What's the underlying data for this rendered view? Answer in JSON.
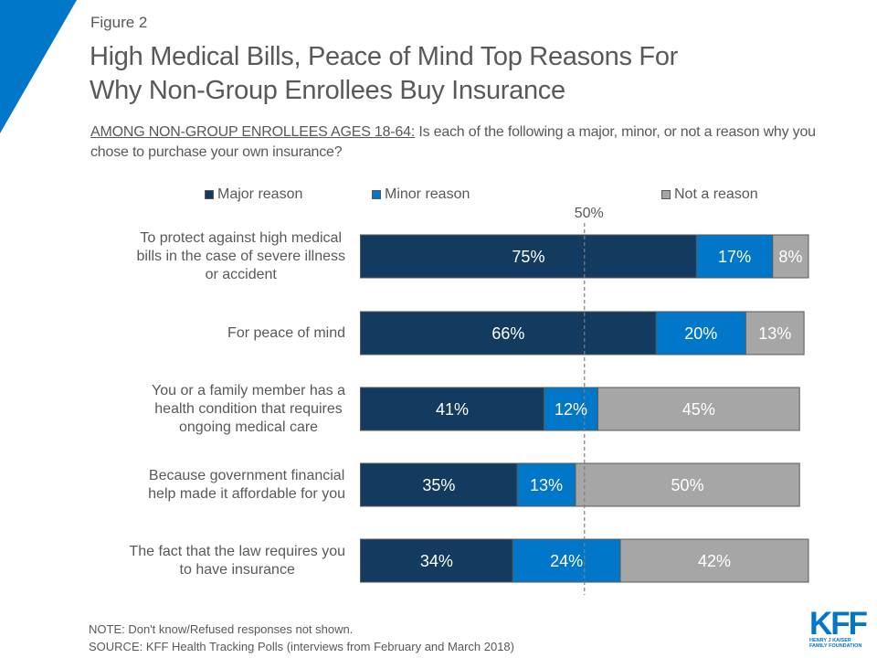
{
  "header": {
    "figure_label": "Figure 2",
    "title_line1": "High Medical Bills, Peace of Mind Top Reasons For",
    "title_line2": "Why Non-Group Enrollees Buy Insurance",
    "subtitle_lead": "AMONG NON-GROUP ENROLLEES AGES 18-64:",
    "subtitle_rest": " Is each of the following a major, minor, or not a reason why you chose to purchase your own insurance?"
  },
  "colors": {
    "major": "#123B5F",
    "minor": "#0077C8",
    "not": "#A6A6A6",
    "bar_border": "#595959",
    "text": "#595959",
    "corner_accent": "#0077C8",
    "brand": "#0077C8"
  },
  "chart_data": {
    "type": "bar",
    "orientation": "horizontal",
    "stacked": true,
    "title": "High Medical Bills, Peace of Mind Top Reasons For Why Non-Group Enrollees Buy Insurance",
    "xlabel": "",
    "ylabel": "",
    "xlim": [
      0,
      100
    ],
    "grid": false,
    "legend_position": "top",
    "categories": [
      "To protect against high medical bills in the case of severe illness or accident",
      "For peace of mind",
      "You or a family member has a health condition that requires ongoing medical care",
      "Because government financial help made it affordable for you",
      "The fact that the law requires you to have insurance"
    ],
    "category_lines": [
      [
        "To protect against high medical",
        "bills in the case of severe illness",
        "or accident"
      ],
      [
        "For peace of mind"
      ],
      [
        "You or a family member has a",
        "health condition that requires",
        "ongoing medical care"
      ],
      [
        "Because government financial",
        "help made it affordable for you"
      ],
      [
        "The fact that the law requires you",
        "to have insurance"
      ]
    ],
    "series": [
      {
        "name": "Major reason",
        "key": "major",
        "values": [
          75,
          66,
          41,
          35,
          34
        ],
        "labels": [
          "75%",
          "66%",
          "41%",
          "35%",
          "34%"
        ]
      },
      {
        "name": "Minor reason",
        "key": "minor",
        "values": [
          17,
          20,
          12,
          13,
          24
        ],
        "labels": [
          "17%",
          "20%",
          "12%",
          "13%",
          "24%"
        ]
      },
      {
        "name": "Not a reason",
        "key": "not",
        "values": [
          8,
          13,
          45,
          50,
          42
        ],
        "labels": [
          "8%",
          "13%",
          "45%",
          "50%",
          "42%"
        ]
      }
    ],
    "reference_line": {
      "value": 50,
      "label": "50%",
      "style": "dashed"
    }
  },
  "footer": {
    "note": "NOTE: Don't know/Refused responses not shown.",
    "source": "SOURCE: KFF Health Tracking Polls (interviews from February and March 2018)"
  },
  "logo": {
    "mark": "KFF",
    "line1": "HENRY J KAISER",
    "line2": "FAMILY FOUNDATION"
  }
}
